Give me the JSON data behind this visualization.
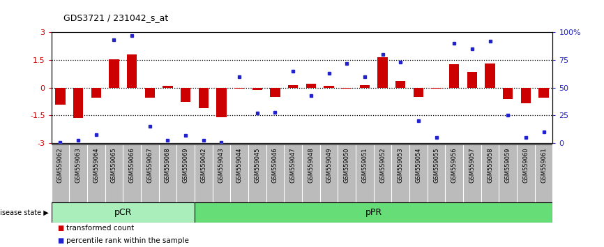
{
  "title": "GDS3721 / 231042_s_at",
  "samples": [
    "GSM559062",
    "GSM559063",
    "GSM559064",
    "GSM559065",
    "GSM559066",
    "GSM559067",
    "GSM559068",
    "GSM559069",
    "GSM559042",
    "GSM559043",
    "GSM559044",
    "GSM559045",
    "GSM559046",
    "GSM559047",
    "GSM559048",
    "GSM559049",
    "GSM559050",
    "GSM559051",
    "GSM559052",
    "GSM559053",
    "GSM559054",
    "GSM559055",
    "GSM559056",
    "GSM559057",
    "GSM559058",
    "GSM559059",
    "GSM559060",
    "GSM559061"
  ],
  "bar_values": [
    -0.9,
    -1.65,
    -0.55,
    1.55,
    1.8,
    -0.55,
    0.1,
    -0.75,
    -1.1,
    -1.6,
    -0.05,
    -0.12,
    -0.5,
    0.15,
    0.2,
    0.1,
    -0.05,
    0.12,
    1.65,
    0.35,
    -0.5,
    -0.05,
    1.25,
    0.85,
    1.3,
    -0.6,
    -0.85,
    -0.55
  ],
  "percentile_values": [
    1,
    3,
    8,
    93,
    97,
    15,
    3,
    7,
    3,
    1,
    60,
    27,
    28,
    65,
    43,
    63,
    72,
    60,
    80,
    73,
    20,
    5,
    90,
    85,
    92,
    25,
    5,
    10
  ],
  "pCR_count": 8,
  "bar_color": "#CC0000",
  "dot_color": "#2222CC",
  "pCR_color": "#AAEEBB",
  "pPR_color": "#66DD77",
  "bg_color": "#FFFFFF",
  "ylim": [
    -3.0,
    3.0
  ],
  "y2lim": [
    0,
    100
  ],
  "dotted_lines": [
    1.5,
    0.0,
    -1.5
  ],
  "legend_bar_label": "transformed count",
  "legend_dot_label": "percentile rank within the sample",
  "right_ytick_labels": [
    "0",
    "25",
    "50",
    "75",
    "100%"
  ],
  "right_ytick_vals": [
    0,
    25,
    50,
    75,
    100
  ],
  "left_ytick_labels": [
    "-3",
    "-1.5",
    "0",
    "1.5",
    "3"
  ],
  "left_ytick_vals": [
    -3,
    -1.5,
    0,
    1.5,
    3
  ]
}
